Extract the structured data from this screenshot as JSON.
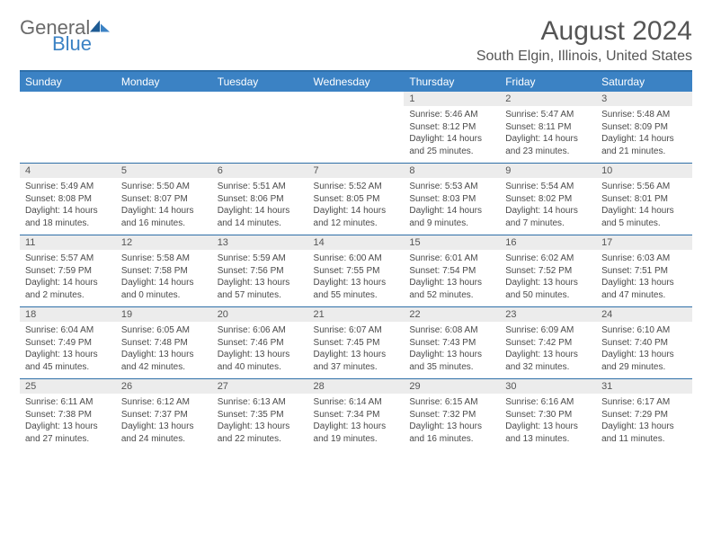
{
  "logo": {
    "part1": "General",
    "part2": "Blue"
  },
  "title": "August 2024",
  "location": "South Elgin, Illinois, United States",
  "colors": {
    "header_bg": "#3b82c4",
    "header_text": "#ffffff",
    "rule": "#2f6fa8",
    "daynum_bg": "#ececec",
    "text": "#4a4a4a",
    "logo_gray": "#6a6a6a",
    "logo_blue": "#3b82c4",
    "page_bg": "#ffffff"
  },
  "weekdays": [
    "Sunday",
    "Monday",
    "Tuesday",
    "Wednesday",
    "Thursday",
    "Friday",
    "Saturday"
  ],
  "weeks": [
    [
      null,
      null,
      null,
      null,
      {
        "n": "1",
        "sunrise": "Sunrise: 5:46 AM",
        "sunset": "Sunset: 8:12 PM",
        "day": "Daylight: 14 hours and 25 minutes."
      },
      {
        "n": "2",
        "sunrise": "Sunrise: 5:47 AM",
        "sunset": "Sunset: 8:11 PM",
        "day": "Daylight: 14 hours and 23 minutes."
      },
      {
        "n": "3",
        "sunrise": "Sunrise: 5:48 AM",
        "sunset": "Sunset: 8:09 PM",
        "day": "Daylight: 14 hours and 21 minutes."
      }
    ],
    [
      {
        "n": "4",
        "sunrise": "Sunrise: 5:49 AM",
        "sunset": "Sunset: 8:08 PM",
        "day": "Daylight: 14 hours and 18 minutes."
      },
      {
        "n": "5",
        "sunrise": "Sunrise: 5:50 AM",
        "sunset": "Sunset: 8:07 PM",
        "day": "Daylight: 14 hours and 16 minutes."
      },
      {
        "n": "6",
        "sunrise": "Sunrise: 5:51 AM",
        "sunset": "Sunset: 8:06 PM",
        "day": "Daylight: 14 hours and 14 minutes."
      },
      {
        "n": "7",
        "sunrise": "Sunrise: 5:52 AM",
        "sunset": "Sunset: 8:05 PM",
        "day": "Daylight: 14 hours and 12 minutes."
      },
      {
        "n": "8",
        "sunrise": "Sunrise: 5:53 AM",
        "sunset": "Sunset: 8:03 PM",
        "day": "Daylight: 14 hours and 9 minutes."
      },
      {
        "n": "9",
        "sunrise": "Sunrise: 5:54 AM",
        "sunset": "Sunset: 8:02 PM",
        "day": "Daylight: 14 hours and 7 minutes."
      },
      {
        "n": "10",
        "sunrise": "Sunrise: 5:56 AM",
        "sunset": "Sunset: 8:01 PM",
        "day": "Daylight: 14 hours and 5 minutes."
      }
    ],
    [
      {
        "n": "11",
        "sunrise": "Sunrise: 5:57 AM",
        "sunset": "Sunset: 7:59 PM",
        "day": "Daylight: 14 hours and 2 minutes."
      },
      {
        "n": "12",
        "sunrise": "Sunrise: 5:58 AM",
        "sunset": "Sunset: 7:58 PM",
        "day": "Daylight: 14 hours and 0 minutes."
      },
      {
        "n": "13",
        "sunrise": "Sunrise: 5:59 AM",
        "sunset": "Sunset: 7:56 PM",
        "day": "Daylight: 13 hours and 57 minutes."
      },
      {
        "n": "14",
        "sunrise": "Sunrise: 6:00 AM",
        "sunset": "Sunset: 7:55 PM",
        "day": "Daylight: 13 hours and 55 minutes."
      },
      {
        "n": "15",
        "sunrise": "Sunrise: 6:01 AM",
        "sunset": "Sunset: 7:54 PM",
        "day": "Daylight: 13 hours and 52 minutes."
      },
      {
        "n": "16",
        "sunrise": "Sunrise: 6:02 AM",
        "sunset": "Sunset: 7:52 PM",
        "day": "Daylight: 13 hours and 50 minutes."
      },
      {
        "n": "17",
        "sunrise": "Sunrise: 6:03 AM",
        "sunset": "Sunset: 7:51 PM",
        "day": "Daylight: 13 hours and 47 minutes."
      }
    ],
    [
      {
        "n": "18",
        "sunrise": "Sunrise: 6:04 AM",
        "sunset": "Sunset: 7:49 PM",
        "day": "Daylight: 13 hours and 45 minutes."
      },
      {
        "n": "19",
        "sunrise": "Sunrise: 6:05 AM",
        "sunset": "Sunset: 7:48 PM",
        "day": "Daylight: 13 hours and 42 minutes."
      },
      {
        "n": "20",
        "sunrise": "Sunrise: 6:06 AM",
        "sunset": "Sunset: 7:46 PM",
        "day": "Daylight: 13 hours and 40 minutes."
      },
      {
        "n": "21",
        "sunrise": "Sunrise: 6:07 AM",
        "sunset": "Sunset: 7:45 PM",
        "day": "Daylight: 13 hours and 37 minutes."
      },
      {
        "n": "22",
        "sunrise": "Sunrise: 6:08 AM",
        "sunset": "Sunset: 7:43 PM",
        "day": "Daylight: 13 hours and 35 minutes."
      },
      {
        "n": "23",
        "sunrise": "Sunrise: 6:09 AM",
        "sunset": "Sunset: 7:42 PM",
        "day": "Daylight: 13 hours and 32 minutes."
      },
      {
        "n": "24",
        "sunrise": "Sunrise: 6:10 AM",
        "sunset": "Sunset: 7:40 PM",
        "day": "Daylight: 13 hours and 29 minutes."
      }
    ],
    [
      {
        "n": "25",
        "sunrise": "Sunrise: 6:11 AM",
        "sunset": "Sunset: 7:38 PM",
        "day": "Daylight: 13 hours and 27 minutes."
      },
      {
        "n": "26",
        "sunrise": "Sunrise: 6:12 AM",
        "sunset": "Sunset: 7:37 PM",
        "day": "Daylight: 13 hours and 24 minutes."
      },
      {
        "n": "27",
        "sunrise": "Sunrise: 6:13 AM",
        "sunset": "Sunset: 7:35 PM",
        "day": "Daylight: 13 hours and 22 minutes."
      },
      {
        "n": "28",
        "sunrise": "Sunrise: 6:14 AM",
        "sunset": "Sunset: 7:34 PM",
        "day": "Daylight: 13 hours and 19 minutes."
      },
      {
        "n": "29",
        "sunrise": "Sunrise: 6:15 AM",
        "sunset": "Sunset: 7:32 PM",
        "day": "Daylight: 13 hours and 16 minutes."
      },
      {
        "n": "30",
        "sunrise": "Sunrise: 6:16 AM",
        "sunset": "Sunset: 7:30 PM",
        "day": "Daylight: 13 hours and 13 minutes."
      },
      {
        "n": "31",
        "sunrise": "Sunrise: 6:17 AM",
        "sunset": "Sunset: 7:29 PM",
        "day": "Daylight: 13 hours and 11 minutes."
      }
    ]
  ]
}
